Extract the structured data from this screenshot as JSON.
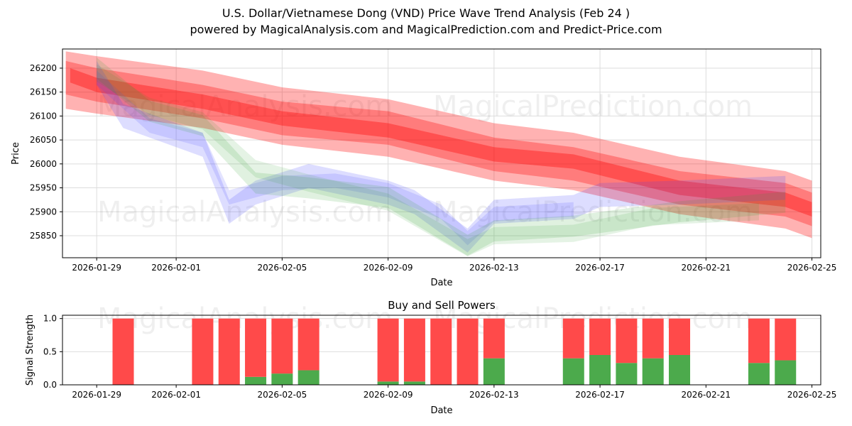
{
  "chart_data": [
    {
      "type": "area",
      "title": "U.S. Dollar/Vietnamese Dong (VND) Price Wave Trend Analysis (Feb 24 )",
      "subtitle": "powered by MagicalAnalysis.com and MagicalPrediction.com and Predict-Price.com",
      "xlabel": "Date",
      "ylabel": "Price",
      "xlim": [
        "2026-01-27T17:00",
        "2026-02-25T08:00"
      ],
      "ylim": [
        25804,
        26240
      ],
      "xticks": [
        "2026-01-29",
        "2026-02-01",
        "2026-02-05",
        "2026-02-09",
        "2026-02-13",
        "2026-02-17",
        "2026-02-21",
        "2026-02-25"
      ],
      "yticks": [
        25850,
        25900,
        25950,
        26000,
        26050,
        26100,
        26150,
        26200
      ],
      "grid": true,
      "watermarks": [
        "MagicalAnalysis.com",
        "MagicalPrediction.com"
      ],
      "series": [
        {
          "name": "red-wide",
          "color": "#ff0000",
          "opacity": 0.3,
          "half_width": 60,
          "x": [
            "2026-01-27T20:00",
            "2026-01-29",
            "2026-02-02",
            "2026-02-05",
            "2026-02-09",
            "2026-02-13",
            "2026-02-16",
            "2026-02-20",
            "2026-02-24",
            "2026-02-25"
          ],
          "y": [
            26175,
            26165,
            26135,
            26100,
            26075,
            26025,
            26005,
            25955,
            25925,
            25905
          ]
        },
        {
          "name": "red-mid",
          "color": "#ff0000",
          "opacity": 0.3,
          "half_width": 35,
          "x": [
            "2026-01-27T20:00",
            "2026-01-29",
            "2026-02-02",
            "2026-02-05",
            "2026-02-09",
            "2026-02-13",
            "2026-02-16",
            "2026-02-20",
            "2026-02-24",
            "2026-02-25"
          ],
          "y": [
            26180,
            26165,
            26130,
            26095,
            26075,
            26020,
            26000,
            25950,
            25925,
            25905
          ]
        },
        {
          "name": "red-core",
          "color": "#ff0000",
          "opacity": 0.35,
          "half_width": 15,
          "x": [
            "2026-01-28",
            "2026-01-29",
            "2026-02-02",
            "2026-02-05",
            "2026-02-09",
            "2026-02-13",
            "2026-02-16",
            "2026-02-20",
            "2026-02-24",
            "2026-02-25"
          ],
          "y": [
            26185,
            26165,
            26130,
            26095,
            26070,
            26020,
            26005,
            25950,
            25925,
            25905
          ]
        },
        {
          "name": "blue",
          "color": "#4444ff",
          "opacity": 0.18,
          "half_width": 25,
          "x": [
            "2026-01-29",
            "2026-01-30",
            "2026-02-02",
            "2026-02-03",
            "2026-02-04",
            "2026-02-06",
            "2026-02-09",
            "2026-02-10",
            "2026-02-12",
            "2026-02-13",
            "2026-02-16",
            "2026-02-17",
            "2026-02-20",
            "2026-02-24"
          ],
          "y": [
            26190,
            26100,
            26040,
            25900,
            25940,
            25975,
            25940,
            25920,
            25840,
            25900,
            25910,
            25935,
            25940,
            25950
          ]
        },
        {
          "name": "blue-2",
          "color": "#4444ff",
          "opacity": 0.15,
          "half_width": 15,
          "x": [
            "2026-01-29",
            "2026-01-31",
            "2026-02-02",
            "2026-02-03",
            "2026-02-05",
            "2026-02-07",
            "2026-02-09",
            "2026-02-11",
            "2026-02-12",
            "2026-02-13",
            "2026-02-16"
          ],
          "y": [
            26180,
            26080,
            26050,
            25930,
            25960,
            25965,
            25945,
            25900,
            25845,
            25895,
            25905
          ]
        },
        {
          "name": "green",
          "color": "#2ca02c",
          "opacity": 0.15,
          "half_width": 22,
          "x": [
            "2026-01-29",
            "2026-01-31",
            "2026-02-02",
            "2026-02-04",
            "2026-02-06",
            "2026-02-09",
            "2026-02-12",
            "2026-02-13",
            "2026-02-16",
            "2026-02-20",
            "2026-02-24"
          ],
          "y": [
            26200,
            26110,
            26080,
            25960,
            25950,
            25930,
            25830,
            25860,
            25870,
            25900,
            25920
          ]
        },
        {
          "name": "green-2",
          "color": "#2ca02c",
          "opacity": 0.12,
          "half_width": 18,
          "x": [
            "2026-01-29",
            "2026-01-31",
            "2026-02-02",
            "2026-02-04",
            "2026-02-06",
            "2026-02-09",
            "2026-02-12",
            "2026-02-13",
            "2026-02-16",
            "2026-02-19",
            "2026-02-23"
          ],
          "y": [
            26190,
            26120,
            26090,
            25990,
            25960,
            25920,
            25825,
            25850,
            25855,
            25890,
            25900
          ]
        }
      ]
    },
    {
      "type": "bar",
      "title": "Buy and Sell Powers",
      "xlabel": "Date",
      "ylabel": "Signal Strength",
      "ylim": [
        0,
        1.05
      ],
      "yticks": [
        "0.0",
        "0.5",
        "1.0"
      ],
      "xticks": [
        "2026-01-29",
        "2026-02-01",
        "2026-02-05",
        "2026-02-09",
        "2026-02-13",
        "2026-02-17",
        "2026-02-21",
        "2026-02-25"
      ],
      "colors": {
        "buy": "#4caa4c",
        "sell": "#ff4a4a"
      },
      "dates": [
        "2026-01-30",
        "2026-02-02",
        "2026-02-03",
        "2026-02-04",
        "2026-02-05",
        "2026-02-06",
        "2026-02-09",
        "2026-02-10",
        "2026-02-11",
        "2026-02-12",
        "2026-02-13",
        "2026-02-16",
        "2026-02-17",
        "2026-02-18",
        "2026-02-19",
        "2026-02-20",
        "2026-02-23",
        "2026-02-24"
      ],
      "buy": [
        0,
        0,
        0,
        0.12,
        0.17,
        0.22,
        0.05,
        0.05,
        0,
        0,
        0.4,
        0.4,
        0.45,
        0.33,
        0.4,
        0.45,
        0.33,
        0.37
      ],
      "sell": [
        1,
        1,
        1,
        0.88,
        0.83,
        0.78,
        0.95,
        0.95,
        1,
        1,
        0.6,
        0.6,
        0.55,
        0.67,
        0.6,
        0.55,
        0.67,
        0.63
      ]
    }
  ]
}
